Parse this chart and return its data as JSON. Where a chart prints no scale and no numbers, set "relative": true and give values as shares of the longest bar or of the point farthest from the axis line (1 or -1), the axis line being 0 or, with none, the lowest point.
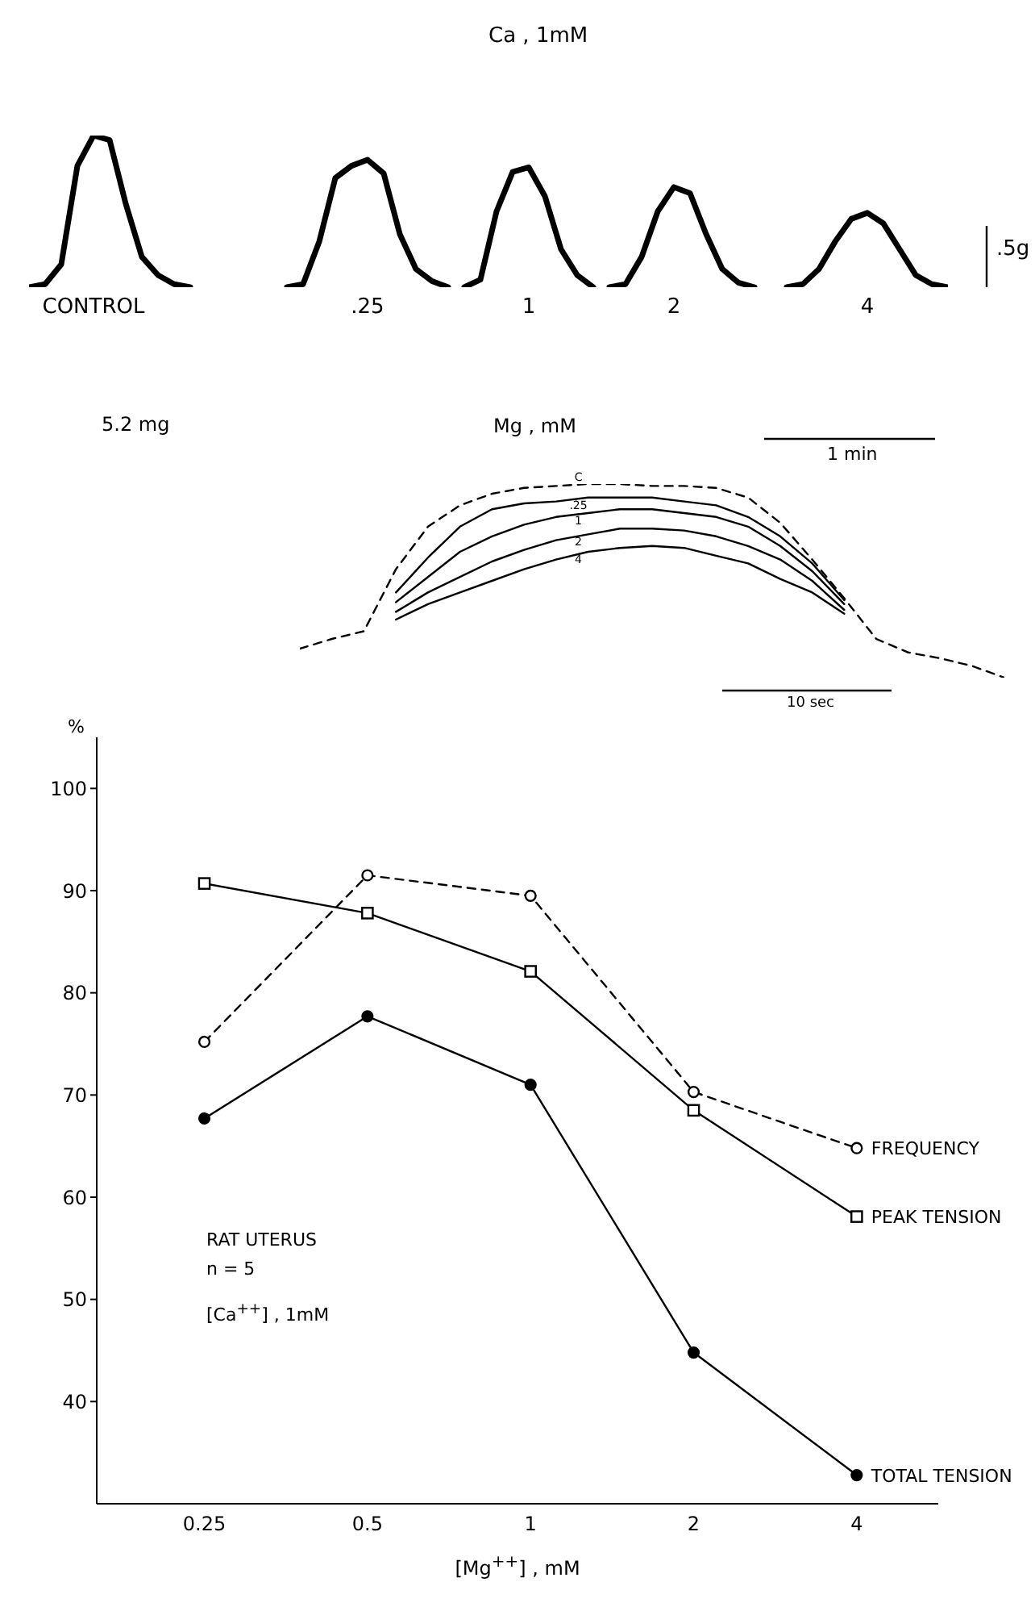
{
  "chart_data": [
    {
      "type": "line",
      "title": "Ca , 1mM",
      "xlabel": "Mg ,  mM",
      "relative": true,
      "legend": false,
      "categories": [
        null,
        null,
        null,
        null,
        null,
        null,
        null,
        null,
        null,
        null,
        null,
        null,
        null,
        null,
        null,
        null,
        null,
        null,
        null,
        null,
        null,
        null,
        null,
        null,
        null,
        null,
        null,
        null,
        null,
        null,
        null,
        null,
        null,
        null,
        null,
        null,
        null,
        null,
        null,
        null,
        null,
        null,
        null,
        null,
        null,
        null,
        null,
        null,
        null,
        null,
        null,
        null,
        null,
        null,
        null,
        null,
        null,
        null
      ],
      "series": [
        {
          "name": "CONTROL",
          "color": "#000000",
          "values": [
            0,
            0.02,
            0.15,
            0.8,
            1,
            0.97,
            0.55,
            0.2,
            0.08,
            0.02,
            0,
            null,
            null,
            null,
            null,
            null,
            null,
            null,
            null,
            null,
            null,
            null,
            null,
            null,
            null,
            null,
            null,
            null,
            null,
            null,
            null,
            null,
            null,
            null,
            null,
            null,
            null,
            null,
            null,
            null,
            null,
            null,
            null,
            null,
            null,
            null,
            null,
            null,
            null,
            null,
            null,
            null,
            null,
            null,
            null,
            null,
            null,
            null
          ]
        },
        {
          "name": ".25",
          "color": "#000000",
          "values": [
            null,
            null,
            null,
            null,
            null,
            null,
            null,
            null,
            null,
            null,
            null,
            null,
            null,
            null,
            null,
            null,
            0,
            0.02,
            0.3,
            0.72,
            0.8,
            0.84,
            0.75,
            0.35,
            0.12,
            0.04,
            0,
            null,
            null,
            null,
            null,
            null,
            null,
            null,
            null,
            null,
            null,
            null,
            null,
            null,
            null,
            null,
            null,
            null,
            null,
            null,
            null,
            null,
            null,
            null,
            null,
            null,
            null,
            null,
            null,
            null,
            null,
            null
          ]
        },
        {
          "name": "1",
          "color": "#000000",
          "values": [
            null,
            null,
            null,
            null,
            null,
            null,
            null,
            null,
            null,
            null,
            null,
            null,
            null,
            null,
            null,
            null,
            null,
            null,
            null,
            null,
            null,
            null,
            null,
            null,
            null,
            null,
            null,
            0,
            0.05,
            0.5,
            0.76,
            0.79,
            0.6,
            0.25,
            0.08,
            0,
            null,
            null,
            null,
            null,
            null,
            null,
            null,
            null,
            null,
            null,
            null,
            null,
            null,
            null,
            null,
            null,
            null,
            null,
            null,
            null,
            null,
            null
          ]
        },
        {
          "name": "2",
          "color": "#000000",
          "values": [
            null,
            null,
            null,
            null,
            null,
            null,
            null,
            null,
            null,
            null,
            null,
            null,
            null,
            null,
            null,
            null,
            null,
            null,
            null,
            null,
            null,
            null,
            null,
            null,
            null,
            null,
            null,
            null,
            null,
            null,
            null,
            null,
            null,
            null,
            null,
            null,
            0,
            0.02,
            0.2,
            0.5,
            0.66,
            0.62,
            0.35,
            0.12,
            0.03,
            0,
            null,
            null,
            null,
            null,
            null,
            null,
            null,
            null,
            null,
            null,
            null,
            null
          ]
        },
        {
          "name": "4",
          "color": "#000000",
          "values": [
            null,
            null,
            null,
            null,
            null,
            null,
            null,
            null,
            null,
            null,
            null,
            null,
            null,
            null,
            null,
            null,
            null,
            null,
            null,
            null,
            null,
            null,
            null,
            null,
            null,
            null,
            null,
            null,
            null,
            null,
            null,
            null,
            null,
            null,
            null,
            null,
            null,
            null,
            null,
            null,
            null,
            null,
            null,
            null,
            null,
            null,
            null,
            0,
            0.02,
            0.12,
            0.3,
            0.45,
            0.49,
            0.42,
            0.25,
            0.08,
            0.02,
            0
          ]
        }
      ],
      "annotations": [
        "5.2 mg",
        "1 min",
        ".5g"
      ]
    },
    {
      "type": "line",
      "relative": true,
      "legend": false,
      "categories": [
        null,
        null,
        null,
        null,
        null,
        null,
        null,
        null,
        null,
        null,
        null,
        null,
        null,
        null,
        null,
        null,
        null,
        null,
        null,
        null,
        null,
        null,
        null
      ],
      "series": [
        {
          "name": "C",
          "color": "#000000",
          "line_style": "dashed",
          "values": [
            0.15,
            0.2,
            0.24,
            0.56,
            0.78,
            0.89,
            0.95,
            0.98,
            0.99,
            1,
            1,
            0.99,
            0.99,
            0.98,
            0.93,
            0.8,
            0.61,
            0.41,
            0.2,
            0.13,
            0.1,
            0.06,
            0
          ]
        },
        {
          "name": ".25",
          "color": "#000000",
          "line_style": "solid",
          "values": [
            null,
            null,
            null,
            0.44,
            0.62,
            0.78,
            0.87,
            0.9,
            0.91,
            0.93,
            0.93,
            0.93,
            0.91,
            0.89,
            0.83,
            0.73,
            0.59,
            0.4,
            null,
            null,
            null,
            null,
            null
          ]
        },
        {
          "name": "1",
          "color": "#000000",
          "line_style": "solid",
          "values": [
            null,
            null,
            null,
            0.39,
            0.52,
            0.65,
            0.73,
            0.79,
            0.83,
            0.85,
            0.87,
            0.87,
            0.85,
            0.83,
            0.78,
            0.68,
            0.55,
            0.38,
            null,
            null,
            null,
            null,
            null
          ]
        },
        {
          "name": "2",
          "color": "#000000",
          "line_style": "solid",
          "values": [
            null,
            null,
            null,
            0.34,
            0.44,
            0.52,
            0.6,
            0.66,
            0.71,
            0.74,
            0.77,
            0.77,
            0.76,
            0.73,
            0.68,
            0.61,
            0.5,
            0.35,
            null,
            null,
            null,
            null,
            null
          ]
        },
        {
          "name": "4",
          "color": "#000000",
          "line_style": "solid",
          "values": [
            null,
            null,
            null,
            0.3,
            0.38,
            0.44,
            0.5,
            0.56,
            0.61,
            0.65,
            0.67,
            0.68,
            0.67,
            0.63,
            0.59,
            0.51,
            0.44,
            0.33,
            null,
            null,
            null,
            null,
            null
          ]
        }
      ],
      "annotations": [
        "10 sec"
      ]
    },
    {
      "type": "line",
      "xlabel": "[Mg$^{++}$] ,  mM",
      "ylabel": "%",
      "categories": [
        "0.25",
        "0.5",
        "1",
        "2",
        "4"
      ],
      "ylim": [
        30,
        105
      ],
      "yticks": [
        40,
        50,
        60,
        70,
        80,
        90,
        100
      ],
      "grid": false,
      "legend": false,
      "series": [
        {
          "name": "FREQUENCY",
          "color": "#000000",
          "marker": "circle",
          "line_style": "dashed",
          "values": [
            75.2,
            91.5,
            89.5,
            70.3,
            64.8
          ]
        },
        {
          "name": "PEAK TENSION",
          "color": "#000000",
          "marker": "square",
          "line_style": "solid",
          "values": [
            90.7,
            87.8,
            82.1,
            68.5,
            58.1
          ]
        },
        {
          "name": "TOTAL TENSION",
          "color": "#000000",
          "marker": "circle",
          "line_style": "solid",
          "values": [
            67.7,
            77.7,
            71.0,
            44.8,
            32.8
          ]
        }
      ],
      "annotations": [
        "RAT UTERUS",
        "n = 5",
        "[Ca$^{++}$] , 1mM"
      ]
    }
  ]
}
